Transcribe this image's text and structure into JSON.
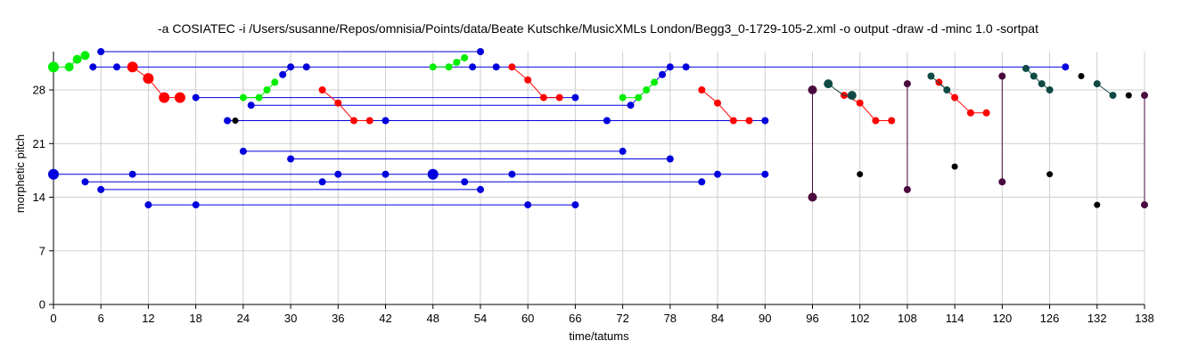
{
  "chart_data": {
    "type": "scatter",
    "title": "-a COSIATEC -i /Users/susanne/Repos/omnisia/Points/data/Beate Kutschke/MusicXMLs London/Begg3_0-1729-105-2.xml -o output -draw -d -minc 1.0 -sortpat",
    "xlabel": "time/tatums",
    "ylabel": "morphetic pitch",
    "xlim": [
      0,
      138
    ],
    "ylim": [
      0,
      33
    ],
    "x_ticks": [
      "0",
      "6",
      "12",
      "18",
      "24",
      "30",
      "36",
      "42",
      "48",
      "54",
      "60",
      "66",
      "72",
      "78",
      "84",
      "90",
      "96",
      "102",
      "108",
      "114",
      "120",
      "126",
      "132",
      "138"
    ],
    "y_ticks": [
      "0",
      "7",
      "14",
      "21",
      "28"
    ],
    "grid": true,
    "colors": {
      "blue": "#0000dd",
      "green": "#00ee00",
      "red": "#ff0000",
      "dark_teal": "#0f4a45",
      "purple": "#4a0a3e",
      "black": "#000000"
    },
    "series": [
      {
        "color": "blue",
        "lines": [
          [
            [
              6,
              33
            ],
            [
              54,
              33
            ]
          ],
          [
            [
              5,
              31
            ],
            [
              128,
              31
            ]
          ],
          [
            [
              18,
              27
            ],
            [
              66,
              27
            ]
          ],
          [
            [
              25,
              26
            ],
            [
              73,
              26
            ]
          ],
          [
            [
              22,
              24
            ],
            [
              90,
              24
            ]
          ],
          [
            [
              24,
              20
            ],
            [
              72,
              20
            ]
          ],
          [
            [
              30,
              19
            ],
            [
              78,
              19
            ]
          ],
          [
            [
              0,
              17
            ],
            [
              90,
              17
            ]
          ],
          [
            [
              4,
              16
            ],
            [
              82,
              16
            ]
          ],
          [
            [
              6,
              15
            ],
            [
              54,
              15
            ]
          ],
          [
            [
              12,
              13
            ],
            [
              66,
              13
            ]
          ],
          [
            [
              29,
              30
            ],
            [
              30,
              31
            ]
          ],
          [
            [
              73,
              26
            ],
            [
              78,
              31
            ]
          ]
        ],
        "points": [
          {
            "x": 6,
            "y": 33,
            "r": 4
          },
          {
            "x": 54,
            "y": 33,
            "r": 4
          },
          {
            "x": 5,
            "y": 31,
            "r": 4
          },
          {
            "x": 8,
            "y": 31,
            "r": 4
          },
          {
            "x": 30,
            "y": 31,
            "r": 4
          },
          {
            "x": 32,
            "y": 31,
            "r": 4
          },
          {
            "x": 53,
            "y": 31,
            "r": 4
          },
          {
            "x": 56,
            "y": 31,
            "r": 4
          },
          {
            "x": 78,
            "y": 31,
            "r": 4
          },
          {
            "x": 80,
            "y": 31,
            "r": 4
          },
          {
            "x": 128,
            "y": 31,
            "r": 4
          },
          {
            "x": 29,
            "y": 30,
            "r": 4
          },
          {
            "x": 77,
            "y": 30,
            "r": 4
          },
          {
            "x": 18,
            "y": 27,
            "r": 4
          },
          {
            "x": 66,
            "y": 27,
            "r": 4
          },
          {
            "x": 25,
            "y": 26,
            "r": 4
          },
          {
            "x": 73,
            "y": 26,
            "r": 4
          },
          {
            "x": 22,
            "y": 24,
            "r": 4
          },
          {
            "x": 42,
            "y": 24,
            "r": 4
          },
          {
            "x": 70,
            "y": 24,
            "r": 4
          },
          {
            "x": 90,
            "y": 24,
            "r": 4
          },
          {
            "x": 24,
            "y": 20,
            "r": 4
          },
          {
            "x": 72,
            "y": 20,
            "r": 4
          },
          {
            "x": 30,
            "y": 19,
            "r": 4
          },
          {
            "x": 78,
            "y": 19,
            "r": 4
          },
          {
            "x": 0,
            "y": 17,
            "r": 6
          },
          {
            "x": 10,
            "y": 17,
            "r": 4
          },
          {
            "x": 36,
            "y": 17,
            "r": 4
          },
          {
            "x": 42,
            "y": 17,
            "r": 4
          },
          {
            "x": 48,
            "y": 17,
            "r": 6
          },
          {
            "x": 58,
            "y": 17,
            "r": 4
          },
          {
            "x": 84,
            "y": 17,
            "r": 4
          },
          {
            "x": 90,
            "y": 17,
            "r": 4
          },
          {
            "x": 4,
            "y": 16,
            "r": 4
          },
          {
            "x": 34,
            "y": 16,
            "r": 4
          },
          {
            "x": 52,
            "y": 16,
            "r": 4
          },
          {
            "x": 82,
            "y": 16,
            "r": 4
          },
          {
            "x": 6,
            "y": 15,
            "r": 4
          },
          {
            "x": 54,
            "y": 15,
            "r": 4
          },
          {
            "x": 12,
            "y": 13,
            "r": 4
          },
          {
            "x": 18,
            "y": 13,
            "r": 4
          },
          {
            "x": 60,
            "y": 13,
            "r": 4
          },
          {
            "x": 66,
            "y": 13,
            "r": 4
          }
        ]
      },
      {
        "color": "green",
        "lines": [
          [
            [
              0,
              31
            ],
            [
              2,
              31
            ],
            [
              3,
              32
            ],
            [
              4,
              32.5
            ]
          ],
          [
            [
              48,
              31
            ],
            [
              50,
              31
            ],
            [
              51,
              31.6
            ],
            [
              52,
              32.2
            ]
          ],
          [
            [
              24,
              27
            ],
            [
              26,
              27
            ],
            [
              27,
              28
            ],
            [
              28,
              29
            ]
          ],
          [
            [
              72,
              27
            ],
            [
              74,
              27
            ],
            [
              75,
              28
            ],
            [
              76,
              29
            ]
          ]
        ],
        "points": [
          {
            "x": 0,
            "y": 31,
            "r": 6
          },
          {
            "x": 2,
            "y": 31,
            "r": 5
          },
          {
            "x": 3,
            "y": 32,
            "r": 5
          },
          {
            "x": 4,
            "y": 32.5,
            "r": 5
          },
          {
            "x": 48,
            "y": 31,
            "r": 4
          },
          {
            "x": 50,
            "y": 31,
            "r": 4
          },
          {
            "x": 51,
            "y": 31.6,
            "r": 4
          },
          {
            "x": 52,
            "y": 32.2,
            "r": 4
          },
          {
            "x": 24,
            "y": 27,
            "r": 4
          },
          {
            "x": 26,
            "y": 27,
            "r": 4
          },
          {
            "x": 27,
            "y": 28,
            "r": 4
          },
          {
            "x": 28,
            "y": 29,
            "r": 4
          },
          {
            "x": 72,
            "y": 27,
            "r": 4
          },
          {
            "x": 74,
            "y": 27,
            "r": 4
          },
          {
            "x": 75,
            "y": 28,
            "r": 4
          },
          {
            "x": 76,
            "y": 29,
            "r": 4
          }
        ]
      },
      {
        "color": "red",
        "lines": [
          [
            [
              10,
              31
            ],
            [
              12,
              29.5
            ],
            [
              14,
              27
            ],
            [
              16,
              27
            ]
          ],
          [
            [
              34,
              28
            ],
            [
              36,
              26.3
            ],
            [
              38,
              24
            ],
            [
              40,
              24
            ]
          ],
          [
            [
              58,
              31
            ],
            [
              60,
              29.3
            ],
            [
              62,
              27
            ],
            [
              64,
              27
            ]
          ],
          [
            [
              82,
              28
            ],
            [
              84,
              26.3
            ],
            [
              86,
              24
            ],
            [
              88,
              24
            ]
          ],
          [
            [
              99,
              28
            ],
            [
              100,
              27.3
            ],
            [
              102,
              26.3
            ],
            [
              104,
              24
            ],
            [
              106,
              24
            ]
          ],
          [
            [
              112,
              29
            ],
            [
              113,
              28
            ],
            [
              114,
              27
            ],
            [
              116,
              25
            ],
            [
              118,
              25
            ]
          ]
        ],
        "points": [
          {
            "x": 10,
            "y": 31,
            "r": 6
          },
          {
            "x": 12,
            "y": 29.5,
            "r": 6
          },
          {
            "x": 14,
            "y": 27,
            "r": 6
          },
          {
            "x": 16,
            "y": 27,
            "r": 6
          },
          {
            "x": 34,
            "y": 28,
            "r": 4
          },
          {
            "x": 36,
            "y": 26.3,
            "r": 4
          },
          {
            "x": 38,
            "y": 24,
            "r": 4
          },
          {
            "x": 40,
            "y": 24,
            "r": 4
          },
          {
            "x": 58,
            "y": 31,
            "r": 4
          },
          {
            "x": 60,
            "y": 29.3,
            "r": 4
          },
          {
            "x": 62,
            "y": 27,
            "r": 4
          },
          {
            "x": 64,
            "y": 27,
            "r": 4
          },
          {
            "x": 82,
            "y": 28,
            "r": 4
          },
          {
            "x": 84,
            "y": 26.3,
            "r": 4
          },
          {
            "x": 86,
            "y": 24,
            "r": 4
          },
          {
            "x": 88,
            "y": 24,
            "r": 4
          },
          {
            "x": 100,
            "y": 27.3,
            "r": 4
          },
          {
            "x": 102,
            "y": 26.3,
            "r": 4
          },
          {
            "x": 104,
            "y": 24,
            "r": 4
          },
          {
            "x": 106,
            "y": 24,
            "r": 4
          },
          {
            "x": 112,
            "y": 29,
            "r": 4
          },
          {
            "x": 114,
            "y": 27,
            "r": 4
          },
          {
            "x": 116,
            "y": 25,
            "r": 4
          },
          {
            "x": 118,
            "y": 25,
            "r": 4
          }
        ]
      },
      {
        "color": "dark_teal",
        "lines": [
          [
            [
              98,
              28.8
            ],
            [
              99,
              28
            ],
            [
              100,
              27.3
            ],
            [
              101,
              27.3
            ]
          ],
          [
            [
              111,
              29.8
            ],
            [
              113,
              28
            ]
          ],
          [
            [
              123,
              30.8
            ],
            [
              124,
              29.8
            ],
            [
              125,
              28.8
            ],
            [
              126,
              28
            ]
          ],
          [
            [
              132,
              28.8
            ],
            [
              134,
              27.3
            ]
          ]
        ],
        "points": [
          {
            "x": 98,
            "y": 28.8,
            "r": 5
          },
          {
            "x": 101,
            "y": 27.3,
            "r": 5
          },
          {
            "x": 111,
            "y": 29.8,
            "r": 4
          },
          {
            "x": 113,
            "y": 28,
            "r": 4
          },
          {
            "x": 123,
            "y": 30.8,
            "r": 4
          },
          {
            "x": 124,
            "y": 29.8,
            "r": 4
          },
          {
            "x": 125,
            "y": 28.8,
            "r": 4
          },
          {
            "x": 126,
            "y": 28,
            "r": 4
          },
          {
            "x": 132,
            "y": 28.8,
            "r": 4
          },
          {
            "x": 134,
            "y": 27.3,
            "r": 4
          }
        ]
      },
      {
        "color": "purple",
        "lines": [
          [
            [
              96,
              28
            ],
            [
              96,
              14
            ]
          ],
          [
            [
              108,
              28.8
            ],
            [
              108,
              15
            ]
          ],
          [
            [
              120,
              29.8
            ],
            [
              120,
              16
            ]
          ],
          [
            [
              138,
              27.3
            ],
            [
              138,
              13
            ]
          ]
        ],
        "points": [
          {
            "x": 96,
            "y": 28,
            "r": 5
          },
          {
            "x": 96,
            "y": 14,
            "r": 5
          },
          {
            "x": 108,
            "y": 28.8,
            "r": 4
          },
          {
            "x": 108,
            "y": 15,
            "r": 4
          },
          {
            "x": 120,
            "y": 29.8,
            "r": 4
          },
          {
            "x": 120,
            "y": 16,
            "r": 4
          },
          {
            "x": 138,
            "y": 27.3,
            "r": 4
          },
          {
            "x": 138,
            "y": 13,
            "r": 4
          }
        ]
      },
      {
        "color": "black",
        "lines": [],
        "points": [
          {
            "x": 23,
            "y": 24,
            "r": 3.5
          },
          {
            "x": 102,
            "y": 17,
            "r": 3.5
          },
          {
            "x": 114,
            "y": 18,
            "r": 3.5
          },
          {
            "x": 126,
            "y": 17,
            "r": 3.5
          },
          {
            "x": 130,
            "y": 29.8,
            "r": 3.5
          },
          {
            "x": 132,
            "y": 13,
            "r": 3.5
          },
          {
            "x": 136,
            "y": 27.3,
            "r": 3.5
          }
        ]
      }
    ]
  }
}
